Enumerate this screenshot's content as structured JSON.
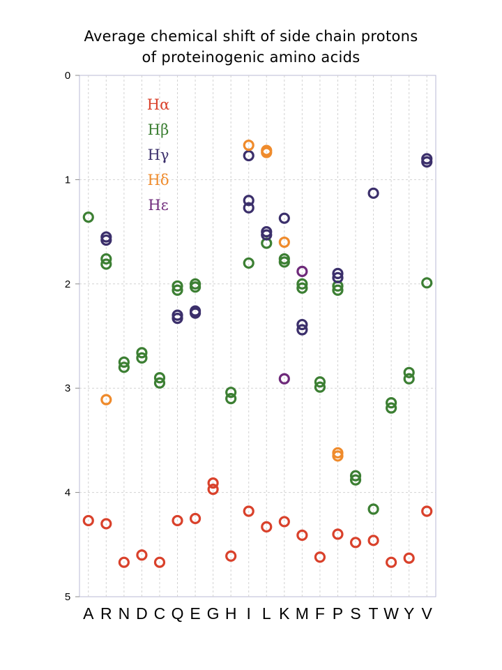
{
  "chart_data": {
    "type": "scatter",
    "title_line1": "Average chemical shift of side chain protons",
    "title_line2": "of proteinogenic amino acids",
    "xlabel": "",
    "ylabel": "",
    "categories": [
      "A",
      "R",
      "N",
      "D",
      "C",
      "Q",
      "E",
      "G",
      "H",
      "I",
      "L",
      "K",
      "M",
      "F",
      "P",
      "S",
      "T",
      "W",
      "Y",
      "V"
    ],
    "ylim": [
      0,
      5
    ],
    "y_inverted": true,
    "yticks": [
      "0",
      "1",
      "2",
      "3",
      "4",
      "5"
    ],
    "grid": "dashed vertical gridlines, dashed horizontal at 1-4",
    "legend_position": "top-left inside plot",
    "series": [
      {
        "name": "Hα",
        "color": "#d9412b",
        "points": [
          [
            "A",
            4.27
          ],
          [
            "R",
            4.3
          ],
          [
            "N",
            4.67
          ],
          [
            "D",
            4.6
          ],
          [
            "C",
            4.67
          ],
          [
            "Q",
            4.27
          ],
          [
            "E",
            4.25
          ],
          [
            "G",
            3.91
          ],
          [
            "G",
            3.97
          ],
          [
            "H",
            4.61
          ],
          [
            "I",
            4.18
          ],
          [
            "L",
            4.33
          ],
          [
            "K",
            4.28
          ],
          [
            "M",
            4.41
          ],
          [
            "F",
            4.62
          ],
          [
            "P",
            4.4
          ],
          [
            "S",
            4.48
          ],
          [
            "T",
            4.46
          ],
          [
            "W",
            4.67
          ],
          [
            "Y",
            4.63
          ],
          [
            "V",
            4.18
          ]
        ]
      },
      {
        "name": "Hβ",
        "color": "#3c7f33",
        "points": [
          [
            "A",
            1.36
          ],
          [
            "R",
            1.76
          ],
          [
            "R",
            1.81
          ],
          [
            "N",
            2.75
          ],
          [
            "N",
            2.8
          ],
          [
            "D",
            2.66
          ],
          [
            "D",
            2.71
          ],
          [
            "C",
            2.9
          ],
          [
            "C",
            2.95
          ],
          [
            "Q",
            2.02
          ],
          [
            "Q",
            2.06
          ],
          [
            "E",
            2.0
          ],
          [
            "E",
            2.03
          ],
          [
            "H",
            3.04
          ],
          [
            "H",
            3.1
          ],
          [
            "I",
            1.8
          ],
          [
            "L",
            1.61
          ],
          [
            "K",
            1.76
          ],
          [
            "K",
            1.79
          ],
          [
            "M",
            2.0
          ],
          [
            "M",
            2.04
          ],
          [
            "F",
            2.94
          ],
          [
            "F",
            2.99
          ],
          [
            "P",
            2.02
          ],
          [
            "P",
            2.06
          ],
          [
            "S",
            3.84
          ],
          [
            "S",
            3.88
          ],
          [
            "T",
            4.16
          ],
          [
            "W",
            3.14
          ],
          [
            "W",
            3.19
          ],
          [
            "Y",
            2.85
          ],
          [
            "Y",
            2.91
          ],
          [
            "V",
            1.99
          ]
        ]
      },
      {
        "name": "Hγ",
        "color": "#3b2f6b",
        "points": [
          [
            "R",
            1.55
          ],
          [
            "R",
            1.58
          ],
          [
            "Q",
            2.3
          ],
          [
            "Q",
            2.33
          ],
          [
            "E",
            2.26
          ],
          [
            "E",
            2.28
          ],
          [
            "I",
            0.77
          ],
          [
            "I",
            1.2
          ],
          [
            "I",
            1.27
          ],
          [
            "L",
            1.5
          ],
          [
            "L",
            1.53
          ],
          [
            "K",
            1.37
          ],
          [
            "M",
            2.39
          ],
          [
            "M",
            2.44
          ],
          [
            "P",
            1.9
          ],
          [
            "P",
            1.94
          ],
          [
            "T",
            1.13
          ],
          [
            "V",
            0.8
          ],
          [
            "V",
            0.83
          ]
        ]
      },
      {
        "name": "Hδ",
        "color": "#ef8b2c",
        "points": [
          [
            "R",
            3.11
          ],
          [
            "I",
            0.67
          ],
          [
            "L",
            0.72
          ],
          [
            "L",
            0.74
          ],
          [
            "K",
            1.6
          ],
          [
            "P",
            3.62
          ],
          [
            "P",
            3.65
          ]
        ]
      },
      {
        "name": "Hε",
        "color": "#6e2a7a",
        "points": [
          [
            "K",
            2.91
          ],
          [
            "M",
            1.88
          ]
        ]
      }
    ]
  }
}
